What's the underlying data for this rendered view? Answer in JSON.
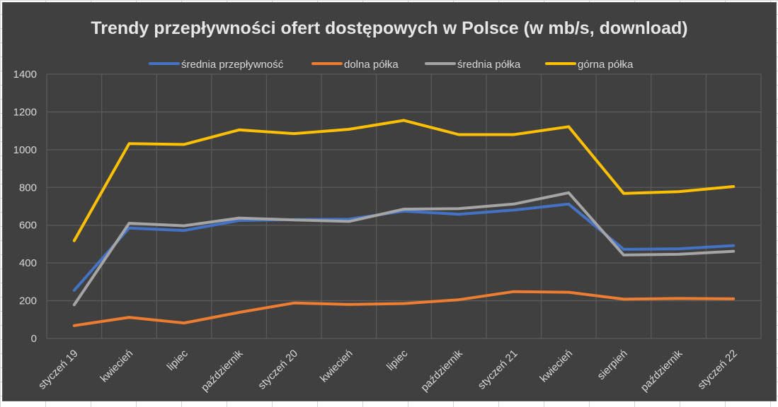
{
  "chart_data": {
    "type": "line",
    "title": "Trendy przepływności ofert dostępowych w Polsce (w mb/s, download)",
    "xlabel": "",
    "ylabel": "",
    "ylim": [
      0,
      1400
    ],
    "yticks": [
      0,
      200,
      400,
      600,
      800,
      1000,
      1200,
      1400
    ],
    "grid": true,
    "legend_position": "top",
    "categories": [
      "styczeń 19",
      "kwiecień",
      "lipiec",
      "październik",
      "styczeń 20",
      "kwiecień",
      "lipiec",
      "październik",
      "styczeń 21",
      "kwiecień",
      "sierpień",
      "październik",
      "styczeń 22"
    ],
    "series": [
      {
        "name": "średnia przepływność",
        "color": "#4472C4",
        "values": [
          255,
          585,
          572,
          625,
          630,
          632,
          675,
          658,
          680,
          712,
          472,
          475,
          492
        ]
      },
      {
        "name": "dolna półka",
        "color": "#ED7D31",
        "values": [
          68,
          112,
          82,
          138,
          188,
          180,
          185,
          205,
          248,
          245,
          208,
          212,
          210
        ]
      },
      {
        "name": "średnia półka",
        "color": "#A5A5A5",
        "values": [
          178,
          610,
          597,
          638,
          628,
          620,
          685,
          688,
          712,
          772,
          442,
          446,
          462
        ]
      },
      {
        "name": "górna półka",
        "color": "#FFC000",
        "values": [
          518,
          1032,
          1028,
          1105,
          1085,
          1108,
          1155,
          1080,
          1080,
          1122,
          768,
          778,
          805
        ]
      }
    ]
  },
  "colors": {
    "background": "#404040",
    "gridline": "#5a5a5a",
    "text": "#d9d9d9"
  }
}
